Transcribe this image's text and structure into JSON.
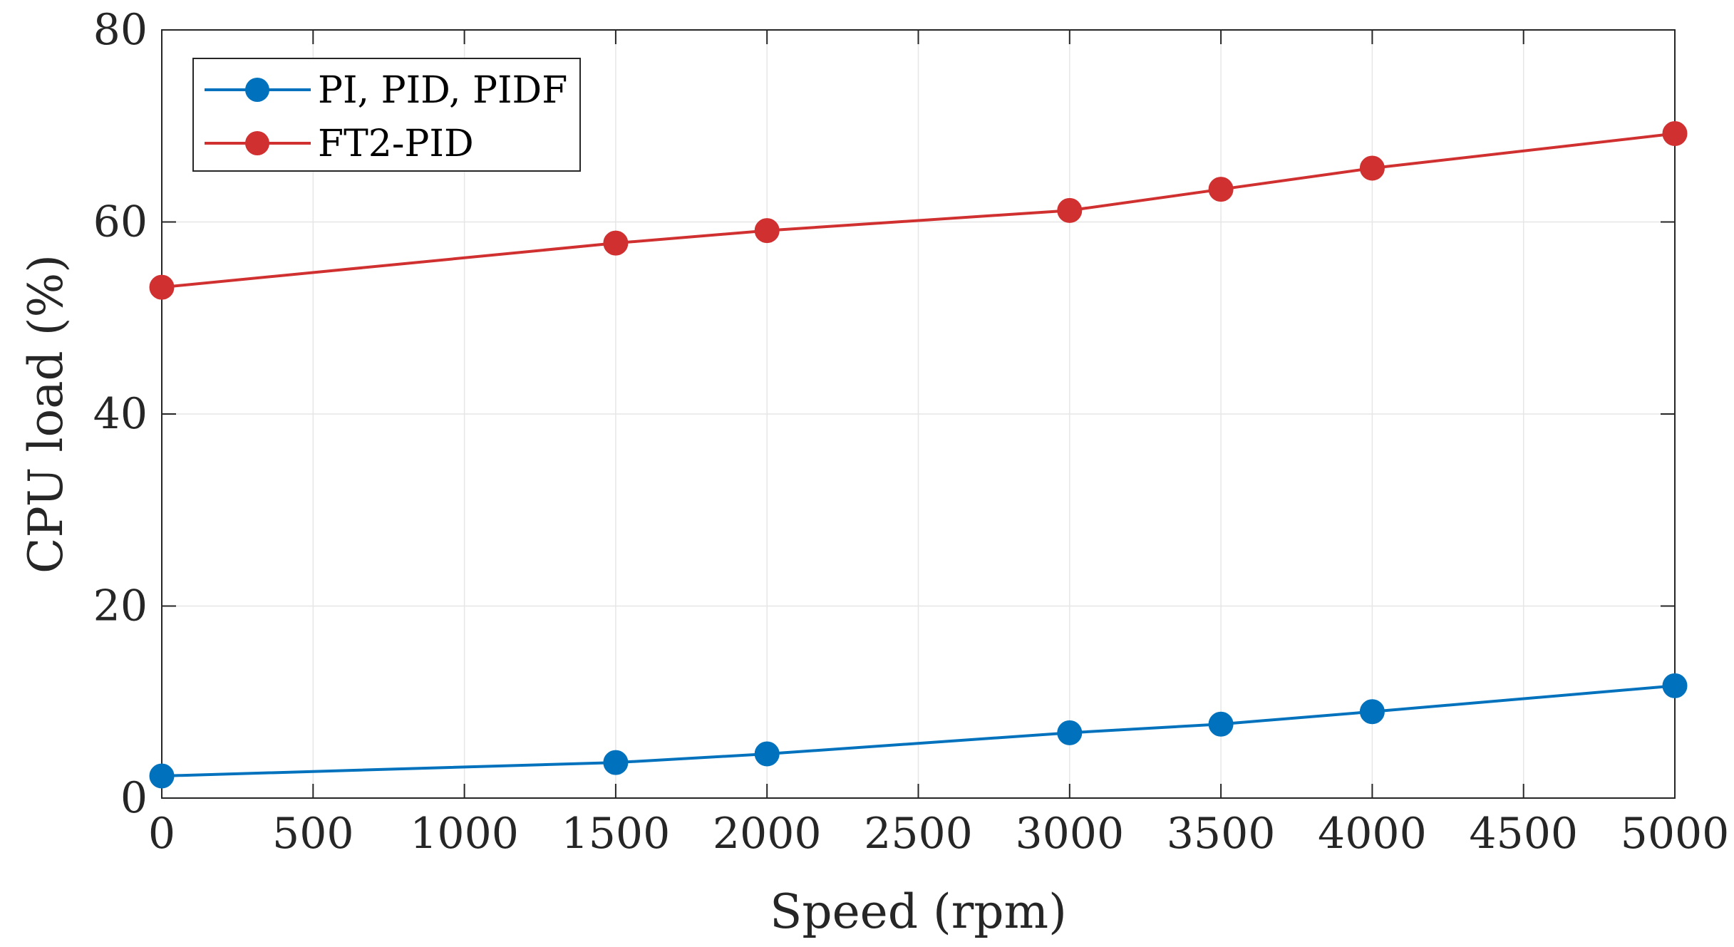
{
  "chart_data": {
    "type": "line",
    "title": "",
    "xlabel": "Speed (rpm)",
    "ylabel": "CPU load (%)",
    "xlim": [
      0,
      5000
    ],
    "ylim": [
      0,
      80
    ],
    "xticks": [
      0,
      500,
      1000,
      1500,
      2000,
      2500,
      3000,
      3500,
      4000,
      4500,
      5000
    ],
    "yticks": [
      0,
      20,
      40,
      60,
      80
    ],
    "grid": true,
    "legend_position": "top-left",
    "x": [
      0,
      1500,
      2000,
      3000,
      3500,
      4000,
      5000
    ],
    "series": [
      {
        "name": "PI, PID, PIDF",
        "color": "#0072BD",
        "values": [
          2.3,
          3.7,
          4.6,
          6.8,
          7.7,
          9.0,
          11.7
        ]
      },
      {
        "name": "FT2-PID",
        "color": "#D03030",
        "values": [
          53.2,
          57.8,
          59.1,
          61.2,
          63.4,
          65.6,
          69.2
        ]
      }
    ]
  }
}
